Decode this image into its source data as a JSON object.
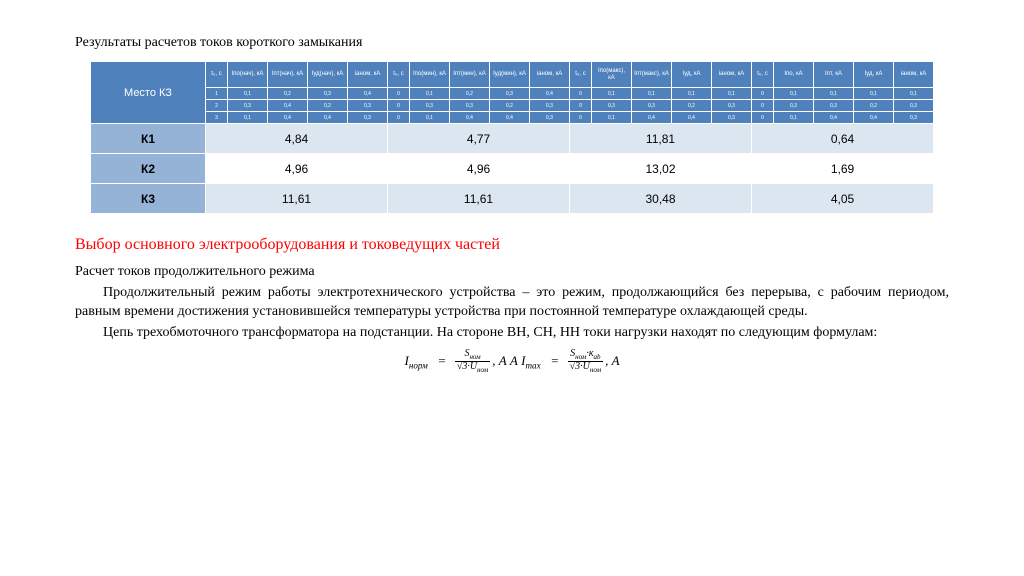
{
  "title1": "Результаты расчетов токов короткого замыкания",
  "table": {
    "place_header": "Место КЗ",
    "group_headers": [
      "t₀, с",
      "Iпо(нач), кА",
      "Iпт(нач), кА",
      "Iуд(нач), кА",
      "iаном, кА",
      "t₀, с",
      "Iпо(мин), кА",
      "Iпт(мин), кА",
      "Iуд(мин), кА",
      "iаном, кА",
      "t₀, с",
      "Iпо(макс), кА",
      "Iпт(макс), кА",
      "Iуд, кА",
      "iаном, кА",
      "t₀, с",
      "Iпо, кА",
      "Iпт, кА",
      "Iуд, кА",
      "iаном, кА"
    ],
    "mini_rows": [
      [
        "1",
        "0,1",
        "0,2",
        "0,3",
        "0,4",
        "0",
        "0,1",
        "0,2",
        "0,3",
        "0,4",
        "0",
        "0,1",
        "0,1",
        "0,1",
        "0,1",
        "0",
        "0,1",
        "0,1",
        "0,1",
        "0,1"
      ],
      [
        "2",
        "0,3",
        "0,4",
        "0,2",
        "0,3",
        "0",
        "0,3",
        "0,3",
        "0,2",
        "0,3",
        "0",
        "0,3",
        "0,3",
        "0,2",
        "0,3",
        "0",
        "0,3",
        "0,3",
        "0,2",
        "0,3"
      ],
      [
        "3",
        "0,1",
        "0,4",
        "0,4",
        "0,3",
        "0",
        "0,1",
        "0,4",
        "0,4",
        "0,3",
        "0",
        "0,1",
        "0,4",
        "0,4",
        "0,3",
        "0",
        "0,1",
        "0,4",
        "0,4",
        "0,3"
      ]
    ],
    "rows": [
      {
        "label": "К1",
        "vals": [
          "4,84",
          "4,77",
          "11,81",
          "0,64"
        ],
        "style": "odd"
      },
      {
        "label": "К2",
        "vals": [
          "4,96",
          "4,96",
          "13,02",
          "1,69"
        ],
        "style": "even"
      },
      {
        "label": "К3",
        "vals": [
          "11,61",
          "11,61",
          "30,48",
          "4,05"
        ],
        "style": "odd"
      }
    ],
    "colors": {
      "header_bg": "#4f81bd",
      "label_bg": "#95b3d7",
      "odd_bg": "#dce6f1",
      "even_bg": "#ffffff",
      "border": "#ffffff"
    }
  },
  "red_heading": "Выбор основного электрооборудования и токоведущих частей",
  "sub_heading": "Расчет токов продолжительного режима",
  "para1": "Продолжительный режим работы электротехнического устройства – это режим, продолжающийся без перерыва, с рабочим периодом, равным времени достижения установившейся температуры устройства при постоянной температуре охлаждающей среды.",
  "para2": "Цепь трехобмоточного трансформатора на подстанции. На стороне ВН, СН, НН токи нагрузки находят по следующим формулам:",
  "formula": {
    "lhs1": "I",
    "sub1": "норм",
    "num1": "S",
    "num1_sub": "ном",
    "den1_pre": "√3·U",
    "den1_sub": "ном",
    "mid": ", А   А  ",
    "lhs2": "I",
    "sub2": "max",
    "num2_pre": "S",
    "num2_sub": "ном",
    "num2_post": "·к",
    "num2_sub2": "ab",
    "den2_pre": "√3·U",
    "den2_sub": "ном",
    "tail": ", А"
  }
}
